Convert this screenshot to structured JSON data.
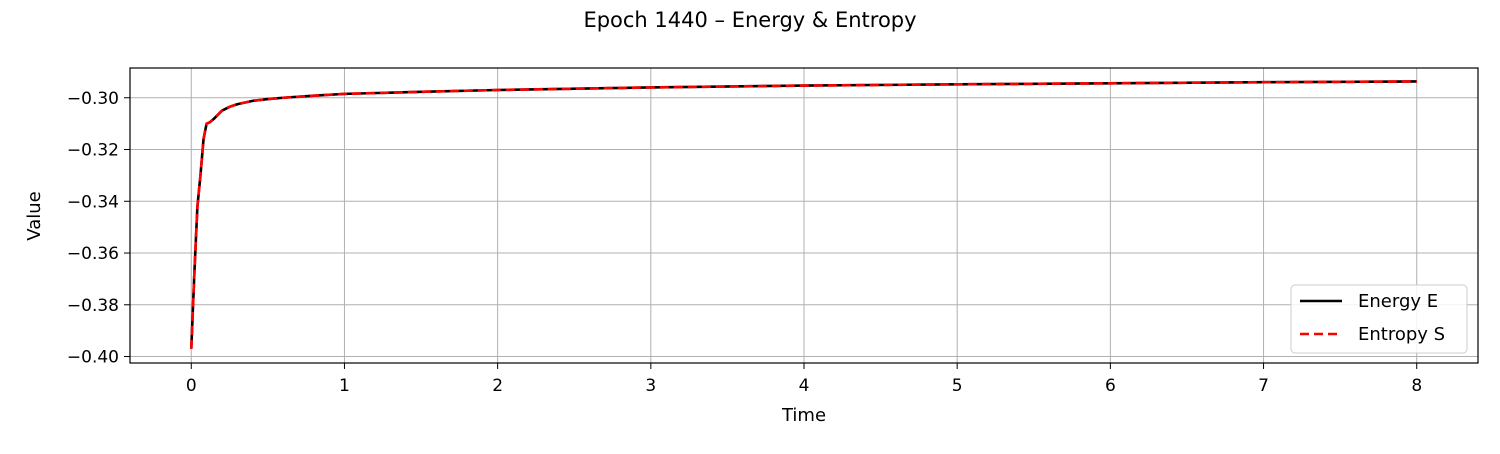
{
  "chart_data": {
    "type": "line",
    "title": "Epoch 1440 – Energy & Entropy",
    "xlabel": "Time",
    "ylabel": "Value",
    "xlim": [
      -0.4,
      8.4
    ],
    "ylim": [
      -0.4025,
      -0.2885
    ],
    "xticks": [
      0,
      1,
      2,
      3,
      4,
      5,
      6,
      7,
      8
    ],
    "xtick_labels": [
      "0",
      "1",
      "2",
      "3",
      "4",
      "5",
      "6",
      "7",
      "8"
    ],
    "yticks": [
      -0.4,
      -0.38,
      -0.36,
      -0.34,
      -0.32,
      -0.3
    ],
    "ytick_labels": [
      "−0.40",
      "−0.38",
      "−0.36",
      "−0.34",
      "−0.32",
      "−0.30"
    ],
    "grid": true,
    "legend_position": "lower-right",
    "x": [
      0.0,
      0.02,
      0.04,
      0.06,
      0.08,
      0.1,
      0.12,
      0.15,
      0.2,
      0.25,
      0.3,
      0.4,
      0.5,
      0.6,
      0.8,
      1.0,
      1.5,
      2.0,
      3.0,
      4.0,
      5.0,
      6.0,
      7.0,
      8.0
    ],
    "series": [
      {
        "name": "Energy E",
        "color": "#000000",
        "style": "solid",
        "values": [
          -0.397,
          -0.368,
          -0.342,
          -0.33,
          -0.316,
          -0.31,
          -0.3095,
          -0.308,
          -0.305,
          -0.3035,
          -0.3025,
          -0.3012,
          -0.3005,
          -0.3,
          -0.2992,
          -0.2985,
          -0.2977,
          -0.297,
          -0.296,
          -0.2953,
          -0.2948,
          -0.2944,
          -0.294,
          -0.2937
        ]
      },
      {
        "name": "Entropy S",
        "color": "#ff0000",
        "style": "dashed",
        "values": [
          -0.397,
          -0.368,
          -0.342,
          -0.33,
          -0.316,
          -0.31,
          -0.3095,
          -0.308,
          -0.305,
          -0.3035,
          -0.3025,
          -0.3012,
          -0.3005,
          -0.3,
          -0.2992,
          -0.2985,
          -0.2977,
          -0.297,
          -0.296,
          -0.2953,
          -0.2948,
          -0.2944,
          -0.294,
          -0.2937
        ]
      }
    ]
  }
}
